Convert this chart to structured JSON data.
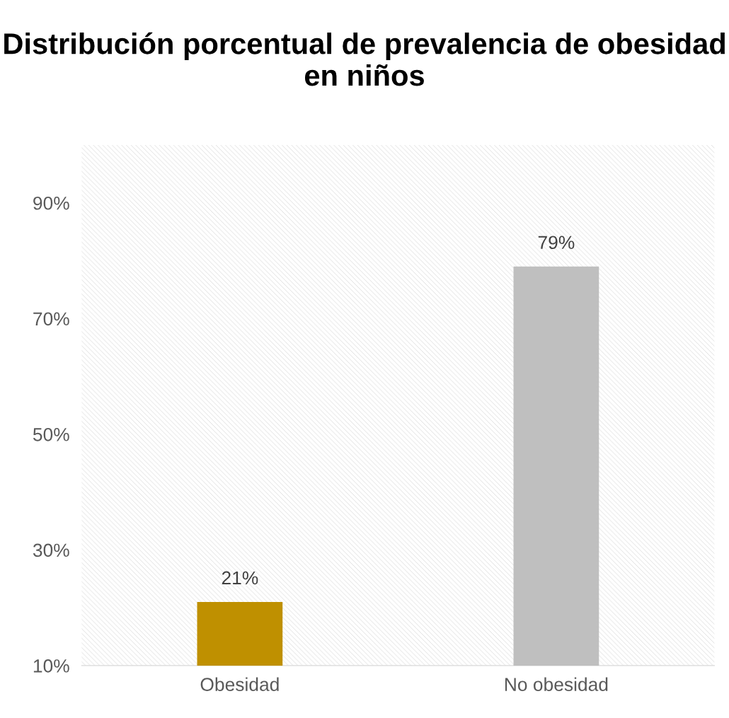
{
  "chart_data": {
    "type": "bar",
    "title": "Distribución porcentual de prevalencia de obesidad en niños",
    "categories": [
      "Obesidad",
      "No obesidad"
    ],
    "values": [
      21,
      79
    ],
    "colors": [
      "#bf9000",
      "#bfbfbf"
    ],
    "ylim": [
      10,
      100
    ],
    "yticks": [
      {
        "value": 10,
        "label": "10%"
      },
      {
        "value": 30,
        "label": "30%"
      },
      {
        "value": 50,
        "label": "50%"
      },
      {
        "value": 70,
        "label": "70%"
      },
      {
        "value": 90,
        "label": "90%"
      }
    ],
    "value_labels": [
      "21%",
      "79%"
    ],
    "grid": false,
    "legend": false
  }
}
